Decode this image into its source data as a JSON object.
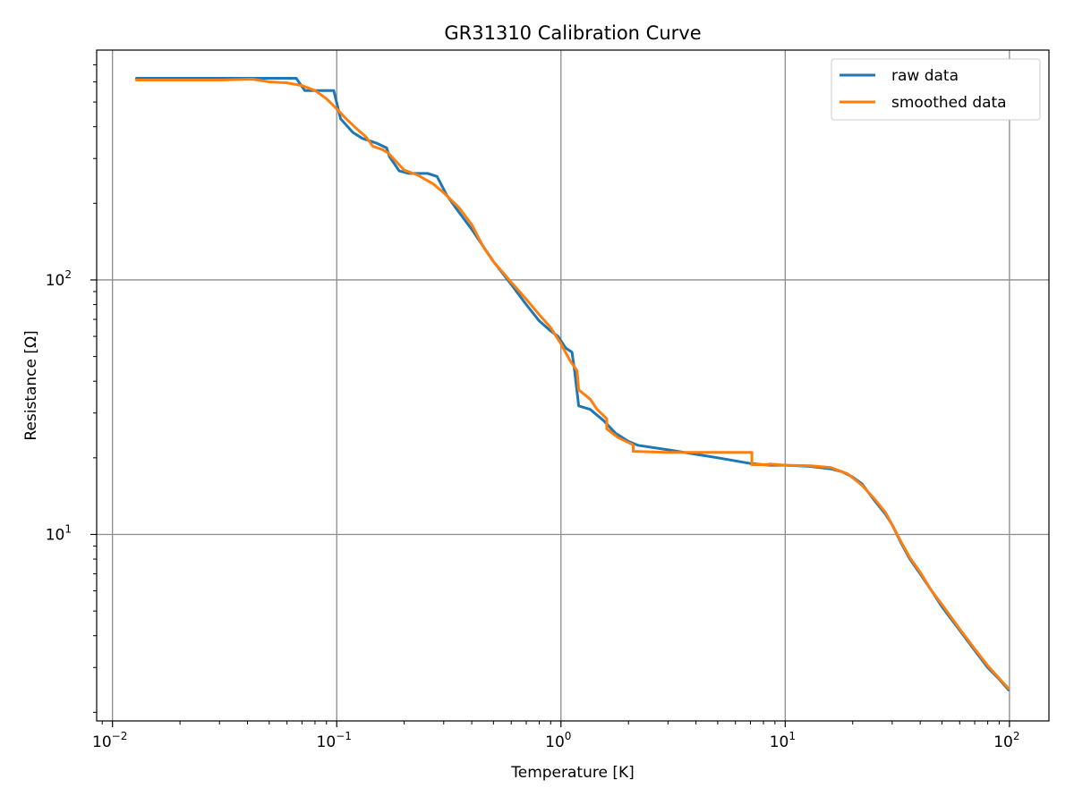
{
  "chart_data": {
    "type": "line",
    "title": "GR31310 Calibration Curve",
    "xlabel": "Temperature [K]",
    "ylabel": "Resistance [Ω]",
    "xscale": "log",
    "yscale": "log",
    "xlim": [
      0.0085,
      150
    ],
    "ylim": [
      1.85,
      800
    ],
    "grid": true,
    "legend": "top-right",
    "x_ticks": [
      {
        "value": 0.01,
        "base": "10",
        "exp": "−2"
      },
      {
        "value": 0.1,
        "base": "10",
        "exp": "−1"
      },
      {
        "value": 1,
        "base": "10",
        "exp": "0"
      },
      {
        "value": 10,
        "base": "10",
        "exp": "1"
      },
      {
        "value": 100,
        "base": "10",
        "exp": "2"
      }
    ],
    "y_ticks": [
      {
        "value": 10,
        "base": "10",
        "exp": "1"
      },
      {
        "value": 100,
        "base": "10",
        "exp": "2"
      }
    ],
    "series": [
      {
        "name": "raw data",
        "color": "#1f77b4",
        "points": [
          [
            0.0128,
            620
          ],
          [
            0.04,
            620
          ],
          [
            0.066,
            620
          ],
          [
            0.072,
            555
          ],
          [
            0.097,
            555
          ],
          [
            0.104,
            430
          ],
          [
            0.118,
            380
          ],
          [
            0.13,
            360
          ],
          [
            0.15,
            345
          ],
          [
            0.167,
            330
          ],
          [
            0.172,
            305
          ],
          [
            0.19,
            268
          ],
          [
            0.21,
            262
          ],
          [
            0.255,
            262
          ],
          [
            0.28,
            255
          ],
          [
            0.31,
            215
          ],
          [
            0.35,
            185
          ],
          [
            0.4,
            158
          ],
          [
            0.5,
            118
          ],
          [
            0.6,
            96
          ],
          [
            0.7,
            80
          ],
          [
            0.8,
            69
          ],
          [
            0.9,
            63
          ],
          [
            0.97,
            60
          ],
          [
            1.05,
            54
          ],
          [
            1.12,
            52
          ],
          [
            1.15,
            44
          ],
          [
            1.2,
            32
          ],
          [
            1.35,
            31
          ],
          [
            1.55,
            28
          ],
          [
            1.75,
            25
          ],
          [
            2.0,
            23.2
          ],
          [
            2.2,
            22.4
          ],
          [
            3.0,
            21.5
          ],
          [
            5.0,
            20.0
          ],
          [
            7.0,
            19.0
          ],
          [
            8.5,
            18.7
          ],
          [
            10.0,
            18.7
          ],
          [
            13.0,
            18.5
          ],
          [
            16.0,
            18.1
          ],
          [
            18.0,
            17.6
          ],
          [
            20.0,
            16.8
          ],
          [
            22.0,
            15.8
          ],
          [
            25.0,
            13.6
          ],
          [
            28.0,
            12.0
          ],
          [
            30.0,
            10.9
          ],
          [
            33.0,
            9.2
          ],
          [
            36.0,
            8.0
          ],
          [
            40.0,
            7.0
          ],
          [
            45.0,
            6.0
          ],
          [
            50.0,
            5.2
          ],
          [
            60.0,
            4.2
          ],
          [
            70.0,
            3.5
          ],
          [
            80.0,
            3.0
          ],
          [
            90.0,
            2.7
          ],
          [
            99.0,
            2.45
          ]
        ]
      },
      {
        "name": "smoothed data",
        "color": "#ff7f0e",
        "points": [
          [
            0.0128,
            610
          ],
          [
            0.03,
            610
          ],
          [
            0.042,
            615
          ],
          [
            0.05,
            600
          ],
          [
            0.06,
            595
          ],
          [
            0.07,
            580
          ],
          [
            0.08,
            555
          ],
          [
            0.09,
            515
          ],
          [
            0.1,
            470
          ],
          [
            0.11,
            430
          ],
          [
            0.12,
            400
          ],
          [
            0.135,
            365
          ],
          [
            0.145,
            335
          ],
          [
            0.16,
            325
          ],
          [
            0.17,
            315
          ],
          [
            0.18,
            298
          ],
          [
            0.2,
            270
          ],
          [
            0.23,
            258
          ],
          [
            0.27,
            238
          ],
          [
            0.3,
            220
          ],
          [
            0.35,
            193
          ],
          [
            0.4,
            165
          ],
          [
            0.45,
            135
          ],
          [
            0.5,
            118
          ],
          [
            0.6,
            98
          ],
          [
            0.7,
            84
          ],
          [
            0.8,
            73
          ],
          [
            0.9,
            65
          ],
          [
            1.0,
            56
          ],
          [
            1.1,
            48
          ],
          [
            1.18,
            44
          ],
          [
            1.2,
            37
          ],
          [
            1.35,
            34
          ],
          [
            1.45,
            31
          ],
          [
            1.6,
            28.5
          ],
          [
            1.6,
            26
          ],
          [
            1.8,
            24
          ],
          [
            2.1,
            22.5
          ],
          [
            2.1,
            21.2
          ],
          [
            3.0,
            21.0
          ],
          [
            5.0,
            21.0
          ],
          [
            7.1,
            21.0
          ],
          [
            7.1,
            18.8
          ],
          [
            8.5,
            18.8
          ],
          [
            8.5,
            18.9
          ],
          [
            10.0,
            18.7
          ],
          [
            13.0,
            18.6
          ],
          [
            16.0,
            18.3
          ],
          [
            19.0,
            17.3
          ],
          [
            22.0,
            15.6
          ],
          [
            25.0,
            13.8
          ],
          [
            28.0,
            12.2
          ],
          [
            30.0,
            10.9
          ],
          [
            33.0,
            9.3
          ],
          [
            36.0,
            8.1
          ],
          [
            40.0,
            7.1
          ],
          [
            45.0,
            6.0
          ],
          [
            50.0,
            5.3
          ],
          [
            60.0,
            4.25
          ],
          [
            70.0,
            3.55
          ],
          [
            80.0,
            3.05
          ],
          [
            90.0,
            2.72
          ],
          [
            99.0,
            2.48
          ]
        ]
      }
    ]
  }
}
